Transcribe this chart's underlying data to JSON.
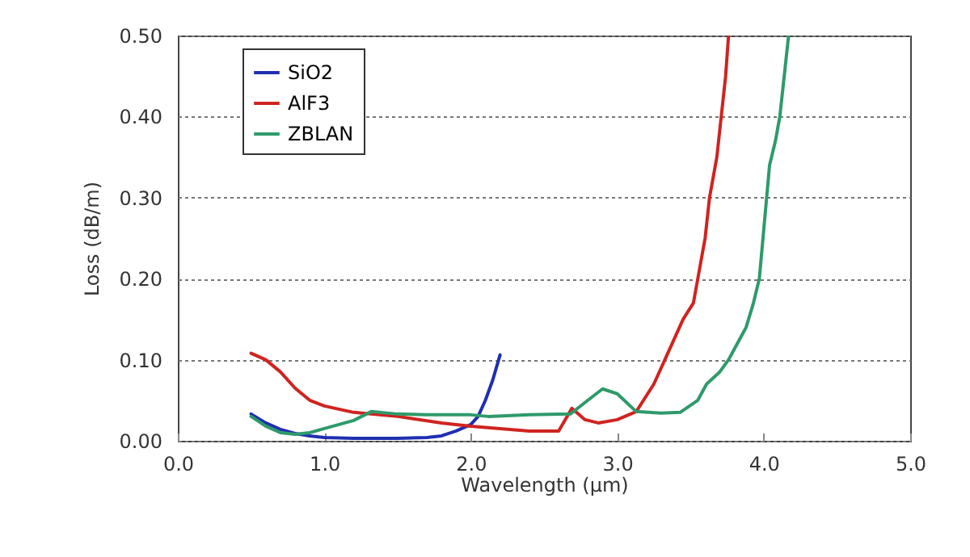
{
  "chart_data": {
    "type": "line",
    "xlabel": "Wavelength (μm)",
    "ylabel": "Loss (dB/m)",
    "xlim": [
      0,
      5
    ],
    "ylim": [
      0,
      0.5
    ],
    "xticks": [
      {
        "value": 0,
        "label": "0.0"
      },
      {
        "value": 1,
        "label": "1.0"
      },
      {
        "value": 2,
        "label": "2.0"
      },
      {
        "value": 3,
        "label": "3.0"
      },
      {
        "value": 4,
        "label": "4.0"
      },
      {
        "value": 5,
        "label": "5.0"
      }
    ],
    "yticks": [
      {
        "value": 0,
        "label": "0.00"
      },
      {
        "value": 0.1,
        "label": "0.10"
      },
      {
        "value": 0.2,
        "label": "0.20"
      },
      {
        "value": 0.3,
        "label": "0.30"
      },
      {
        "value": 0.4,
        "label": "0.40"
      },
      {
        "value": 0.5,
        "label": "0.50"
      }
    ],
    "grid": "y",
    "legend": "top left",
    "line_style": "solid",
    "marker": "none",
    "series": [
      {
        "name": "SiO2",
        "color": "#1f2fb0",
        "x": [
          0.5,
          0.6,
          0.7,
          0.8,
          0.9,
          1.0,
          1.2,
          1.5,
          1.7,
          1.8,
          1.9,
          2.0,
          2.05,
          2.1,
          2.15,
          2.2
        ],
        "values": [
          0.033,
          0.022,
          0.014,
          0.009,
          0.006,
          0.004,
          0.003,
          0.003,
          0.004,
          0.006,
          0.012,
          0.02,
          0.03,
          0.05,
          0.075,
          0.106
        ]
      },
      {
        "name": "AlF3",
        "color": "#d0231f",
        "x": [
          0.5,
          0.6,
          0.7,
          0.8,
          0.9,
          1.0,
          1.2,
          1.5,
          1.8,
          2.0,
          2.2,
          2.4,
          2.6,
          2.69,
          2.78,
          2.87,
          3.0,
          3.13,
          3.25,
          3.35,
          3.45,
          3.52,
          3.6,
          3.63,
          3.68,
          3.71,
          3.74,
          3.76
        ],
        "values": [
          0.108,
          0.1,
          0.085,
          0.065,
          0.05,
          0.043,
          0.035,
          0.03,
          0.022,
          0.018,
          0.015,
          0.012,
          0.012,
          0.04,
          0.026,
          0.022,
          0.026,
          0.036,
          0.07,
          0.11,
          0.15,
          0.17,
          0.25,
          0.3,
          0.35,
          0.4,
          0.45,
          0.5
        ]
      },
      {
        "name": "ZBLAN",
        "color": "#2e9a6a",
        "x": [
          0.5,
          0.6,
          0.7,
          0.8,
          0.9,
          1.0,
          1.2,
          1.32,
          1.5,
          1.7,
          2.0,
          2.12,
          2.4,
          2.68,
          2.8,
          2.9,
          3.0,
          3.13,
          3.3,
          3.43,
          3.55,
          3.61,
          3.7,
          3.76,
          3.82,
          3.88,
          3.93,
          3.97,
          4.0,
          4.04,
          4.08,
          4.11,
          4.14,
          4.17
        ],
        "values": [
          0.03,
          0.018,
          0.01,
          0.008,
          0.01,
          0.015,
          0.025,
          0.036,
          0.033,
          0.032,
          0.032,
          0.03,
          0.032,
          0.033,
          0.05,
          0.064,
          0.058,
          0.036,
          0.034,
          0.035,
          0.05,
          0.07,
          0.085,
          0.1,
          0.12,
          0.14,
          0.17,
          0.2,
          0.26,
          0.34,
          0.37,
          0.4,
          0.45,
          0.5
        ]
      }
    ]
  }
}
